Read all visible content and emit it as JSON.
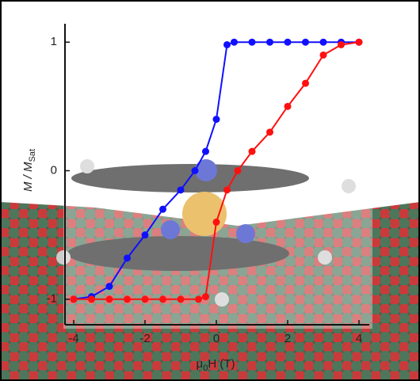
{
  "chart_data": {
    "type": "line",
    "xlabel": [
      "μ",
      "0",
      "H (T)"
    ],
    "ylabel": [
      "M / M",
      "Sat"
    ],
    "xlim": [
      -4.2,
      4.2
    ],
    "ylim": [
      -1.1,
      1.1
    ],
    "xticks": [
      -4,
      -2,
      0,
      2,
      4
    ],
    "yticks": [
      -1,
      0,
      1
    ],
    "series": [
      {
        "color": "#1010ff",
        "x": [
          4,
          3.5,
          3,
          2.5,
          2,
          1.5,
          1,
          0.5,
          0.3,
          0,
          -0.3,
          -0.6,
          -1,
          -1.5,
          -2,
          -2.5,
          -3,
          -3.5,
          -4
        ],
        "values": [
          1,
          1,
          1,
          1,
          1,
          1,
          1,
          1,
          0.98,
          0.4,
          0.15,
          0,
          -0.15,
          -0.3,
          -0.5,
          -0.68,
          -0.9,
          -0.98,
          -1
        ]
      },
      {
        "color": "#ff1010",
        "x": [
          -4,
          -3.5,
          -3,
          -2.5,
          -2,
          -1.5,
          -1,
          -0.5,
          -0.3,
          0,
          0.3,
          0.6,
          1,
          1.5,
          2,
          2.5,
          3,
          3.5,
          4
        ],
        "values": [
          -1,
          -1,
          -1,
          -1,
          -1,
          -1,
          -1,
          -1,
          -0.98,
          -0.4,
          -0.15,
          0,
          0.15,
          0.3,
          0.5,
          0.68,
          0.9,
          0.98,
          1
        ]
      }
    ]
  }
}
